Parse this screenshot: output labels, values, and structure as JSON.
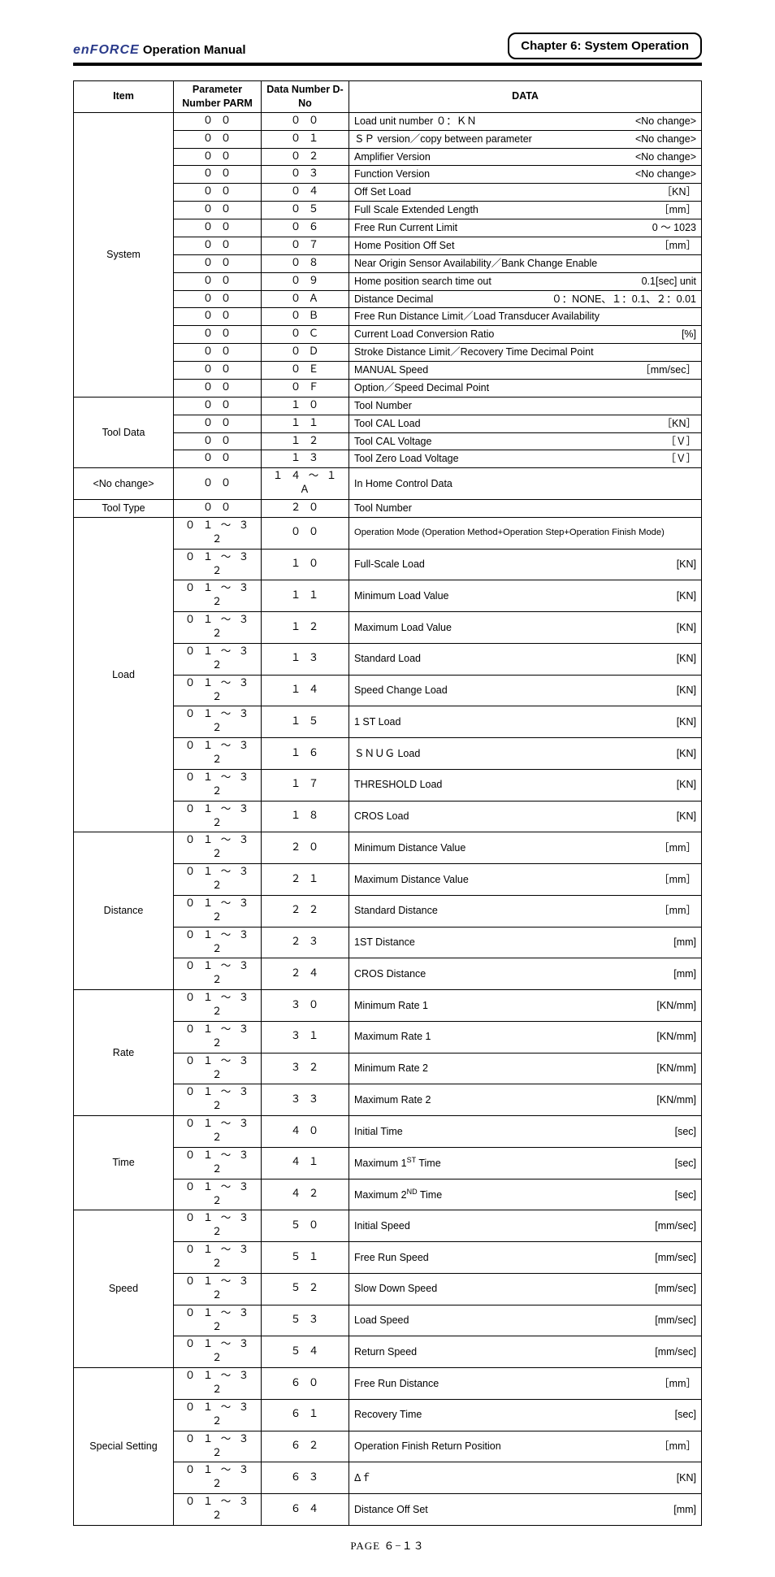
{
  "header": {
    "brand": "enFORCE",
    "manual": "Operation Manual",
    "chapter": "Chapter 6: System Operation"
  },
  "table_headers": {
    "item": "Item",
    "parm": "Parameter Number PARM",
    "dno": "Data Number D-No",
    "data": "DATA"
  },
  "groups": [
    {
      "item": "System",
      "rows": [
        {
          "parm": "０ ０",
          "dno": "０ ０",
          "desc": "Load unit number  ０：ＫＮ",
          "unit": "<No change>"
        },
        {
          "parm": "０ ０",
          "dno": "０ １",
          "desc": "ＳＰ version／copy between parameter",
          "unit": "<No change>"
        },
        {
          "parm": "０ ０",
          "dno": "０ ２",
          "desc": "Amplifier Version",
          "unit": "<No change>"
        },
        {
          "parm": "０ ０",
          "dno": "０ ３",
          "desc": "Function Version",
          "unit": "<No change>"
        },
        {
          "parm": "０ ０",
          "dno": "０ ４",
          "desc": "Off Set Load",
          "unit": "［KN］"
        },
        {
          "parm": "０ ０",
          "dno": "０ ５",
          "desc": "Full Scale Extended Length",
          "unit": "［mm］"
        },
        {
          "parm": "０ ０",
          "dno": "０ ６",
          "desc": "Free Run Current Limit",
          "unit": "0 ～ 1023"
        },
        {
          "parm": "０ ０",
          "dno": "０ ７",
          "desc": "Home Position Off Set",
          "unit": "［mm］"
        },
        {
          "parm": "０ ０",
          "dno": "０ ８",
          "desc": "Near Origin Sensor Availability／Bank Change Enable",
          "unit": ""
        },
        {
          "parm": "０ ０",
          "dno": "０ ９",
          "desc": "Home position search time out",
          "unit": "0.1[sec] unit"
        },
        {
          "parm": "０ ０",
          "dno": "０ Ａ",
          "desc": "Distance Decimal",
          "unit": "０：NONE、１：0.1、２：0.01"
        },
        {
          "parm": "０ ０",
          "dno": "０ Ｂ",
          "desc": "Free Run Distance Limit／Load Transducer Availability",
          "unit": ""
        },
        {
          "parm": "０ ０",
          "dno": "０ Ｃ",
          "desc": "Current Load Conversion Ratio",
          "unit": "[%]"
        },
        {
          "parm": "０ ０",
          "dno": "０ Ｄ",
          "desc": "Stroke Distance Limit／Recovery Time Decimal Point",
          "unit": ""
        },
        {
          "parm": "０ ０",
          "dno": "０ Ｅ",
          "desc": "MANUAL Speed",
          "unit": "［mm/sec］"
        },
        {
          "parm": "０ ０",
          "dno": "０ Ｆ",
          "desc": "Option／Speed Decimal Point",
          "unit": ""
        }
      ]
    },
    {
      "item": "Tool Data",
      "rows": [
        {
          "parm": "０ ０",
          "dno": "１ ０",
          "desc": "Tool Number",
          "unit": ""
        },
        {
          "parm": "０ ０",
          "dno": "１ １",
          "desc": "Tool CAL Load",
          "unit": "［KN］"
        },
        {
          "parm": "０ ０",
          "dno": "１ ２",
          "desc": "Tool CAL Voltage",
          "unit": "［Ｖ］"
        },
        {
          "parm": "０ ０",
          "dno": "１ ３",
          "desc": "Tool Zero Load Voltage",
          "unit": "［Ｖ］"
        }
      ]
    },
    {
      "item": "<No change>",
      "rows": [
        {
          "parm": "０ ０",
          "dno": "１ ４ ～ １ Ａ",
          "desc": "In Home Control Data",
          "unit": ""
        }
      ]
    },
    {
      "item": "Tool Type",
      "rows": [
        {
          "parm": "０ ０",
          "dno": "２ ０",
          "desc": "Tool Number",
          "unit": ""
        }
      ]
    },
    {
      "item": "Load",
      "rows": [
        {
          "parm": "０ １ ～ ３ ２",
          "dno": "０ ０",
          "desc": "Operation Mode (Operation Method+Operation Step+Operation Finish Mode)",
          "unit": "",
          "small": true
        },
        {
          "parm": "０ １ ～ ３ ２",
          "dno": "１ ０",
          "desc": "Full-Scale Load",
          "unit": "[KN]"
        },
        {
          "parm": "０ １ ～ ３ ２",
          "dno": "１ １",
          "desc": "Minimum Load Value",
          "unit": "[KN]"
        },
        {
          "parm": "０ １ ～ ３ ２",
          "dno": "１ ２",
          "desc": "Maximum Load Value",
          "unit": "[KN]"
        },
        {
          "parm": "０ １ ～ ３ ２",
          "dno": "１ ３",
          "desc": "Standard Load",
          "unit": "[KN]"
        },
        {
          "parm": "０ １ ～ ３ ２",
          "dno": "１ ４",
          "desc": "Speed Change Load",
          "unit": "[KN]"
        },
        {
          "parm": "０ １ ～ ３ ２",
          "dno": "１ ５",
          "desc": "1 ST Load",
          "unit": "[KN]"
        },
        {
          "parm": "０ １ ～ ３ ２",
          "dno": "１ ６",
          "desc": "ＳＮＵＧ Load",
          "unit": "[KN]"
        },
        {
          "parm": "０ １ ～ ３ ２",
          "dno": "１ ７",
          "desc": "THRESHOLD Load",
          "unit": "[KN]"
        },
        {
          "parm": "０ １ ～ ３ ２",
          "dno": "１ ８",
          "desc": "CROS Load",
          "unit": "[KN]"
        }
      ]
    },
    {
      "item": "Distance",
      "rows": [
        {
          "parm": "０ １ ～ ３ ２",
          "dno": "２ ０",
          "desc": "Minimum Distance Value",
          "unit": "［mm］"
        },
        {
          "parm": "０ １ ～ ３ ２",
          "dno": "２ １",
          "desc": "Maximum Distance Value",
          "unit": "［mm］"
        },
        {
          "parm": "０ １ ～ ３ ２",
          "dno": "２ ２",
          "desc": "Standard Distance",
          "unit": "［mm］"
        },
        {
          "parm": "０ １ ～ ３ ２",
          "dno": "２ ３",
          "desc": "1ST Distance",
          "unit": "[mm]"
        },
        {
          "parm": "０ １ ～ ３ ２",
          "dno": "２ ４",
          "desc": "CROS Distance",
          "unit": "[mm]"
        }
      ]
    },
    {
      "item": "Rate",
      "rows": [
        {
          "parm": "０ １ ～ ３ ２",
          "dno": "３ ０",
          "desc": "Minimum Rate 1",
          "unit": "[KN/mm]"
        },
        {
          "parm": "０ １ ～ ３ ２",
          "dno": "３ １",
          "desc": "Maximum Rate 1",
          "unit": "[KN/mm]"
        },
        {
          "parm": "０ １ ～ ３ ２",
          "dno": "３ ２",
          "desc": "Minimum Rate 2",
          "unit": "[KN/mm]"
        },
        {
          "parm": "０ １ ～ ３ ２",
          "dno": "３ ３",
          "desc": "Maximum Rate 2",
          "unit": "[KN/mm]"
        }
      ]
    },
    {
      "item": "Time",
      "rows": [
        {
          "parm": "０ １ ～ ３ ２",
          "dno": "４ ０",
          "desc": "Initial Time",
          "unit": "[sec]"
        },
        {
          "parm": "０ １ ～ ３ ２",
          "dno": "４ １",
          "desc_html": "Maximum 1<sup>ST</sup> Time",
          "unit": "[sec]"
        },
        {
          "parm": "０ １ ～ ３ ２",
          "dno": "４ ２",
          "desc_html": "Maximum 2<sup>ND</sup> Time",
          "unit": "[sec]"
        }
      ]
    },
    {
      "item": "Speed",
      "rows": [
        {
          "parm": "０ １ ～ ３ ２",
          "dno": "５ ０",
          "desc": "Initial Speed",
          "unit": "[mm/sec]"
        },
        {
          "parm": "０ １ ～ ３ ２",
          "dno": "５ １",
          "desc": "Free Run Speed",
          "unit": "[mm/sec]"
        },
        {
          "parm": "０ １ ～ ３ ２",
          "dno": "５ ２",
          "desc": "Slow Down Speed",
          "unit": "[mm/sec]"
        },
        {
          "parm": "０ １ ～ ３ ２",
          "dno": "５ ３",
          "desc": "Load Speed",
          "unit": "[mm/sec]"
        },
        {
          "parm": "０ １ ～ ３ ２",
          "dno": "５ ４",
          "desc": "Return Speed",
          "unit": "[mm/sec]"
        }
      ]
    },
    {
      "item": "Special Setting",
      "rows": [
        {
          "parm": "０ １ ～ ３ ２",
          "dno": "６ ０",
          "desc": "Free Run Distance",
          "unit": "［mm］"
        },
        {
          "parm": "０ １ ～ ３ ２",
          "dno": "６ １",
          "desc": "Recovery Time",
          "unit": "[sec]"
        },
        {
          "parm": "０ １ ～ ３ ２",
          "dno": "６ ２",
          "desc": "Operation Finish Return Position",
          "unit": "［mm］"
        },
        {
          "parm": "０ １ ～ ３ ２",
          "dno": "６ ３",
          "desc": "Δｆ",
          "unit": "[KN]"
        },
        {
          "parm": "０ １ ～ ３ ２",
          "dno": "６ ４",
          "desc": "Distance Off Set",
          "unit": "[mm]"
        }
      ]
    }
  ],
  "page_number": "PAGE ６−１３"
}
